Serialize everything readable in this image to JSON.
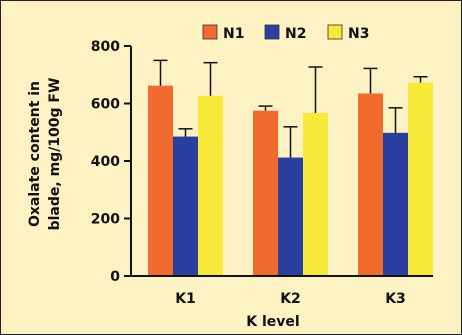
{
  "chart_data": {
    "type": "bar",
    "categories": [
      "K1",
      "K2",
      "K3"
    ],
    "series": [
      {
        "name": "N1",
        "color": "#f26b2e",
        "values": [
          662,
          575,
          635
        ],
        "errors": [
          88,
          16,
          87
        ]
      },
      {
        "name": "N2",
        "color": "#2b3f9e",
        "values": [
          485,
          412,
          498
        ],
        "errors": [
          27,
          107,
          87
        ]
      },
      {
        "name": "N3",
        "color": "#f7ea3a",
        "values": [
          627,
          567,
          673
        ],
        "errors": [
          115,
          160,
          20
        ]
      }
    ],
    "xlabel": "K level",
    "ylabel_lines": [
      "Oxalate content in",
      "blade, mg/100g FW"
    ],
    "ylim": [
      0,
      800
    ],
    "yticks": [
      0,
      200,
      400,
      600,
      800
    ],
    "legend_position": "top",
    "grid": false
  }
}
